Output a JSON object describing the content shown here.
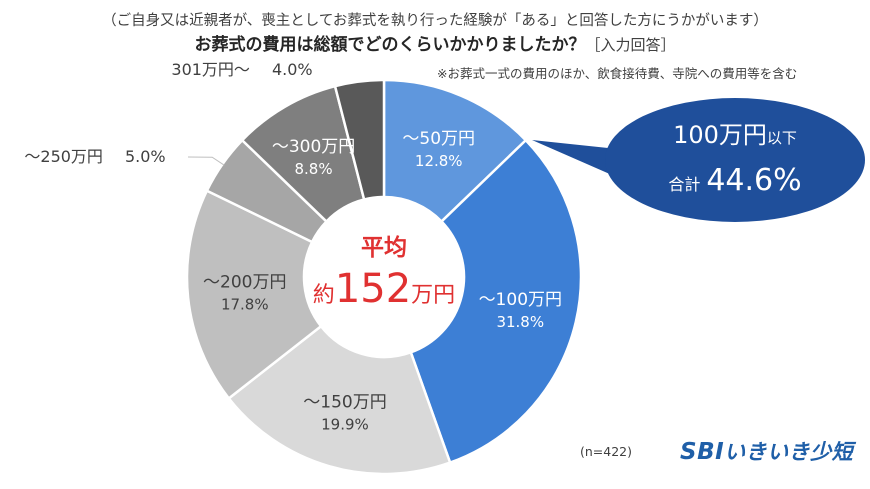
{
  "header": {
    "subtitle": "（ご自身又は近親者が、喪主としてお葬式を執り行った経験が「ある」と回答した方にうかがいます）",
    "title": "お葬式の費用は総額でどのくらいかかりましたか？",
    "tag": "［入力回答］"
  },
  "note": "※お葬式一式の費用のほか、飲食接待費、寺院への費用等を含む",
  "n_count": "(n=422)",
  "center": {
    "label": "平均",
    "prefix": "約",
    "value": "152",
    "unit": "万円"
  },
  "callout": {
    "range": "100万円",
    "range_suffix": "以下",
    "total_prefix": "合計",
    "total_value": "44.6%"
  },
  "logo": {
    "mark": "SBI",
    "name": "いきいき少短"
  },
  "colors": {
    "blue_dark": "#1f4f9b",
    "blue_mid": "#3d7fd5",
    "blue_light": "#5f97dd",
    "red": "#e03131"
  },
  "chart_data": {
    "type": "pie",
    "donut": true,
    "categories": [
      "～50万円",
      "～100万円",
      "～150万円",
      "～200万円",
      "～250万円",
      "～300万円",
      "301万円～"
    ],
    "values": [
      12.8,
      31.8,
      19.9,
      17.8,
      5.0,
      8.8,
      4.0
    ],
    "value_labels": [
      "12.8%",
      "31.8%",
      "19.9%",
      "17.8%",
      "5.0%",
      "8.8%",
      "4.0%"
    ],
    "colors": [
      "#5f97dd",
      "#3d7fd5",
      "#d9d9d9",
      "#bfbfbf",
      "#a6a6a6",
      "#7f7f7f",
      "#595959"
    ],
    "label_colors": [
      "#ffffff",
      "#ffffff",
      "#404040",
      "#404040",
      "#404040",
      "#ffffff",
      "#404040"
    ],
    "start_angle_deg": 0,
    "direction": "clockwise"
  }
}
